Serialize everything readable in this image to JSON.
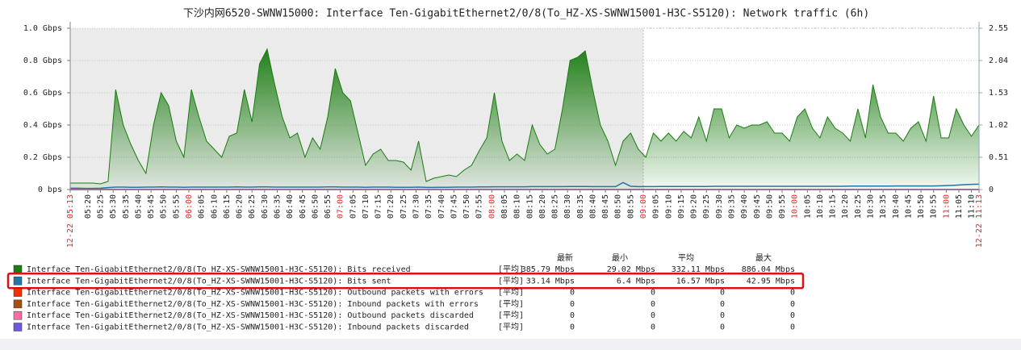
{
  "chart_data": {
    "type": "area",
    "title": "下沙内网6520-SWNW15000: Interface Ten-GigabitEthernet2/0/8(To_HZ-XS-SWNW15001-H3C-S5120): Network traffic (6h)",
    "xlim": [
      "12-22 05:13",
      "12-22 11:13"
    ],
    "xticks": [
      "12-22 05:13",
      "05:20",
      "05:25",
      "05:30",
      "05:35",
      "05:40",
      "05:45",
      "05:50",
      "05:55",
      "06:00",
      "06:05",
      "06:10",
      "06:15",
      "06:20",
      "06:25",
      "06:30",
      "06:35",
      "06:40",
      "06:45",
      "06:50",
      "06:55",
      "07:00",
      "07:05",
      "07:10",
      "07:15",
      "07:20",
      "07:25",
      "07:30",
      "07:35",
      "07:40",
      "07:45",
      "07:50",
      "07:55",
      "08:00",
      "08:05",
      "08:10",
      "08:15",
      "08:20",
      "08:25",
      "08:30",
      "08:35",
      "08:40",
      "08:45",
      "08:50",
      "08:55",
      "09:00",
      "09:05",
      "09:10",
      "09:15",
      "09:20",
      "09:25",
      "09:30",
      "09:35",
      "09:40",
      "09:45",
      "09:50",
      "09:55",
      "10:00",
      "10:05",
      "10:10",
      "10:15",
      "10:20",
      "10:25",
      "10:30",
      "10:35",
      "10:40",
      "10:45",
      "10:50",
      "10:55",
      "11:00",
      "11:05",
      "11:10",
      "12-22 11:13"
    ],
    "major_tick_color": "#e02a2a",
    "shaded_until": "09:00",
    "ylim": [
      0,
      1
    ],
    "yticks": [
      {
        "value": 0,
        "label": "0 bps"
      },
      {
        "value": 0.2,
        "label": "0.2 Gbps"
      },
      {
        "value": 0.4,
        "label": "0.4 Gbps"
      },
      {
        "value": 0.6,
        "label": "0.6 Gbps"
      },
      {
        "value": 0.8,
        "label": "0.8 Gbps"
      },
      {
        "value": 1.0,
        "label": "1.0 Gbps"
      }
    ],
    "y2lim": [
      0,
      2.55
    ],
    "y2ticks": [
      0,
      0.51,
      1.02,
      1.53,
      2.04,
      2.55
    ],
    "grid": true,
    "x": [
      "05:13",
      "05:16",
      "05:19",
      "05:22",
      "05:25",
      "05:28",
      "05:31",
      "05:34",
      "05:37",
      "05:40",
      "05:43",
      "05:46",
      "05:49",
      "05:52",
      "05:55",
      "05:58",
      "06:01",
      "06:04",
      "06:07",
      "06:10",
      "06:13",
      "06:16",
      "06:19",
      "06:22",
      "06:25",
      "06:28",
      "06:31",
      "06:34",
      "06:37",
      "06:40",
      "06:43",
      "06:46",
      "06:49",
      "06:52",
      "06:55",
      "06:58",
      "07:01",
      "07:04",
      "07:07",
      "07:10",
      "07:13",
      "07:16",
      "07:19",
      "07:22",
      "07:25",
      "07:28",
      "07:31",
      "07:34",
      "07:37",
      "07:40",
      "07:43",
      "07:46",
      "07:49",
      "07:52",
      "07:55",
      "07:58",
      "08:01",
      "08:04",
      "08:07",
      "08:10",
      "08:13",
      "08:16",
      "08:19",
      "08:22",
      "08:25",
      "08:28",
      "08:31",
      "08:34",
      "08:37",
      "08:40",
      "08:43",
      "08:46",
      "08:49",
      "08:52",
      "08:55",
      "08:58",
      "09:01",
      "09:04",
      "09:07",
      "09:10",
      "09:13",
      "09:16",
      "09:19",
      "09:22",
      "09:25",
      "09:28",
      "09:31",
      "09:34",
      "09:37",
      "09:40",
      "09:43",
      "09:46",
      "09:49",
      "09:52",
      "09:55",
      "09:58",
      "10:01",
      "10:04",
      "10:07",
      "10:10",
      "10:13",
      "10:16",
      "10:19",
      "10:22",
      "10:25",
      "10:28",
      "10:31",
      "10:34",
      "10:37",
      "10:40",
      "10:43",
      "10:46",
      "10:49",
      "10:52",
      "10:55",
      "10:58",
      "11:01",
      "11:04",
      "11:07",
      "11:10",
      "11:13"
    ],
    "legend_columns": [
      "最新",
      "最小",
      "平均",
      "最大"
    ],
    "highlight_series": 1,
    "series": [
      {
        "name": "Interface Ten-GigabitEthernet2/0/8(To_HZ-XS-SWNW15001-H3C-S5120): Bits received",
        "color": "#1a7c11",
        "style": "gradient",
        "func": "[平均]",
        "stats": [
          "385.79 Mbps",
          "29.02 Mbps",
          "332.11 Mbps",
          "886.04 Mbps"
        ],
        "values": [
          0.04,
          0.04,
          0.04,
          0.04,
          0.035,
          0.05,
          0.62,
          0.4,
          0.28,
          0.18,
          0.1,
          0.4,
          0.6,
          0.52,
          0.3,
          0.2,
          0.62,
          0.45,
          0.3,
          0.25,
          0.2,
          0.33,
          0.35,
          0.62,
          0.42,
          0.78,
          0.87,
          0.65,
          0.45,
          0.32,
          0.35,
          0.2,
          0.32,
          0.25,
          0.45,
          0.75,
          0.6,
          0.55,
          0.35,
          0.15,
          0.22,
          0.25,
          0.18,
          0.18,
          0.17,
          0.12,
          0.3,
          0.05,
          0.07,
          0.08,
          0.09,
          0.08,
          0.12,
          0.15,
          0.24,
          0.32,
          0.6,
          0.3,
          0.18,
          0.22,
          0.18,
          0.4,
          0.28,
          0.22,
          0.25,
          0.5,
          0.8,
          0.82,
          0.86,
          0.62,
          0.4,
          0.3,
          0.15,
          0.3,
          0.35,
          0.25,
          0.2,
          0.35,
          0.3,
          0.35,
          0.3,
          0.36,
          0.32,
          0.45,
          0.3,
          0.5,
          0.5,
          0.32,
          0.4,
          0.38,
          0.4,
          0.4,
          0.42,
          0.35,
          0.35,
          0.3,
          0.45,
          0.5,
          0.38,
          0.32,
          0.45,
          0.38,
          0.35,
          0.3,
          0.5,
          0.32,
          0.65,
          0.45,
          0.35,
          0.35,
          0.3,
          0.38,
          0.42,
          0.3,
          0.58,
          0.32,
          0.32,
          0.5,
          0.4,
          0.33,
          0.4
        ]
      },
      {
        "name": "Interface Ten-GigabitEthernet2/0/8(To_HZ-XS-SWNW15001-H3C-S5120): Bits sent",
        "color": "#2774a4",
        "style": "line",
        "func": "[平均]",
        "stats": [
          "33.14 Mbps",
          "6.4 Mbps",
          "16.57 Mbps",
          "42.95 Mbps"
        ],
        "values": [
          0.008,
          0.008,
          0.007,
          0.007,
          0.008,
          0.012,
          0.015,
          0.015,
          0.014,
          0.014,
          0.015,
          0.015,
          0.016,
          0.015,
          0.015,
          0.014,
          0.015,
          0.015,
          0.015,
          0.015,
          0.015,
          0.015,
          0.016,
          0.015,
          0.015,
          0.016,
          0.016,
          0.015,
          0.015,
          0.015,
          0.015,
          0.015,
          0.015,
          0.015,
          0.016,
          0.016,
          0.015,
          0.015,
          0.015,
          0.014,
          0.015,
          0.015,
          0.015,
          0.014,
          0.014,
          0.014,
          0.015,
          0.013,
          0.013,
          0.014,
          0.014,
          0.015,
          0.015,
          0.015,
          0.016,
          0.016,
          0.017,
          0.017,
          0.017,
          0.017,
          0.017,
          0.018,
          0.018,
          0.018,
          0.018,
          0.018,
          0.019,
          0.019,
          0.019,
          0.018,
          0.018,
          0.018,
          0.018,
          0.043,
          0.02,
          0.018,
          0.018,
          0.018,
          0.019,
          0.019,
          0.019,
          0.019,
          0.019,
          0.019,
          0.019,
          0.02,
          0.02,
          0.02,
          0.02,
          0.02,
          0.02,
          0.02,
          0.02,
          0.02,
          0.02,
          0.02,
          0.02,
          0.02,
          0.02,
          0.02,
          0.02,
          0.02,
          0.02,
          0.021,
          0.021,
          0.021,
          0.021,
          0.021,
          0.021,
          0.022,
          0.022,
          0.022,
          0.022,
          0.022,
          0.022,
          0.023,
          0.025,
          0.027,
          0.03,
          0.032,
          0.033
        ]
      },
      {
        "name": "Interface Ten-GigabitEthernet2/0/8(To_HZ-XS-SWNW15001-H3C-S5120): Outbound packets with errors",
        "color": "#f63100",
        "style": "line",
        "axis": "y2",
        "func": "[平均]",
        "stats": [
          "0",
          "0",
          "0",
          "0"
        ],
        "values": [
          0,
          0,
          0,
          0,
          0,
          0,
          0,
          0,
          0,
          0,
          0,
          0,
          0,
          0,
          0,
          0,
          0,
          0,
          0,
          0,
          0,
          0,
          0,
          0,
          0,
          0,
          0,
          0,
          0,
          0,
          0,
          0,
          0,
          0,
          0,
          0,
          0,
          0,
          0,
          0,
          0,
          0,
          0,
          0,
          0,
          0,
          0,
          0,
          0,
          0,
          0,
          0,
          0,
          0,
          0,
          0,
          0,
          0,
          0,
          0,
          0,
          0,
          0,
          0,
          0,
          0,
          0,
          0,
          0,
          0,
          0,
          0,
          0,
          0,
          0,
          0,
          0,
          0,
          0,
          0,
          0,
          0,
          0,
          0,
          0,
          0,
          0,
          0,
          0,
          0,
          0,
          0,
          0,
          0,
          0,
          0,
          0,
          0,
          0,
          0,
          0,
          0,
          0,
          0,
          0,
          0,
          0,
          0,
          0,
          0,
          0,
          0,
          0,
          0,
          0,
          0,
          0,
          0,
          0,
          0,
          0
        ]
      },
      {
        "name": "Interface Ten-GigabitEthernet2/0/8(To_HZ-XS-SWNW15001-H3C-S5120): Inbound packets with errors",
        "color": "#a54f10",
        "style": "line",
        "axis": "y2",
        "func": "[平均]",
        "stats": [
          "0",
          "0",
          "0",
          "0"
        ],
        "values": [
          0,
          0,
          0,
          0,
          0,
          0,
          0,
          0,
          0,
          0,
          0,
          0,
          0,
          0,
          0,
          0,
          0,
          0,
          0,
          0,
          0,
          0,
          0,
          0,
          0,
          0,
          0,
          0,
          0,
          0,
          0,
          0,
          0,
          0,
          0,
          0,
          0,
          0,
          0,
          0,
          0,
          0,
          0,
          0,
          0,
          0,
          0,
          0,
          0,
          0,
          0,
          0,
          0,
          0,
          0,
          0,
          0,
          0,
          0,
          0,
          0,
          0,
          0,
          0,
          0,
          0,
          0,
          0,
          0,
          0,
          0,
          0,
          0,
          0,
          0,
          0,
          0,
          0,
          0,
          0,
          0,
          0,
          0,
          0,
          0,
          0,
          0,
          0,
          0,
          0,
          0,
          0,
          0,
          0,
          0,
          0,
          0,
          0,
          0,
          0,
          0,
          0,
          0,
          0,
          0,
          0,
          0,
          0,
          0,
          0,
          0,
          0,
          0,
          0,
          0,
          0,
          0,
          0,
          0,
          0,
          0
        ]
      },
      {
        "name": "Interface Ten-GigabitEthernet2/0/8(To_HZ-XS-SWNW15001-H3C-S5120): Outbound packets discarded",
        "color": "#fc6ea3",
        "style": "line",
        "axis": "y2",
        "func": "[平均]",
        "stats": [
          "0",
          "0",
          "0",
          "0"
        ],
        "values": [
          0,
          0,
          0,
          0,
          0,
          0,
          0,
          0,
          0,
          0,
          0,
          0,
          0,
          0,
          0,
          0,
          0,
          0,
          0,
          0,
          0,
          0,
          0,
          0,
          0,
          0,
          0,
          0,
          0,
          0,
          0,
          0,
          0,
          0,
          0,
          0,
          0,
          0,
          0,
          0,
          0,
          0,
          0,
          0,
          0,
          0,
          0,
          0,
          0,
          0,
          0,
          0,
          0,
          0,
          0,
          0,
          0,
          0,
          0,
          0,
          0,
          0,
          0,
          0,
          0,
          0,
          0,
          0,
          0,
          0,
          0,
          0,
          0,
          0,
          0,
          0,
          0,
          0,
          0,
          0,
          0,
          0,
          0,
          0,
          0,
          0,
          0,
          0,
          0,
          0,
          0,
          0,
          0,
          0,
          0,
          0,
          0,
          0,
          0,
          0,
          0,
          0,
          0,
          0,
          0,
          0,
          0,
          0,
          0,
          0,
          0,
          0,
          0,
          0,
          0,
          0,
          0,
          0,
          0,
          0,
          0
        ]
      },
      {
        "name": "Interface Ten-GigabitEthernet2/0/8(To_HZ-XS-SWNW15001-H3C-S5120): Inbound packets discarded",
        "color": "#6c59dc",
        "style": "line",
        "axis": "y2",
        "func": "[平均]",
        "stats": [
          "0",
          "0",
          "0",
          "0"
        ],
        "values": [
          0,
          0,
          0,
          0,
          0,
          0,
          0,
          0,
          0,
          0,
          0,
          0,
          0,
          0,
          0,
          0,
          0,
          0,
          0,
          0,
          0,
          0,
          0,
          0,
          0,
          0,
          0,
          0,
          0,
          0,
          0,
          0,
          0,
          0,
          0,
          0,
          0,
          0,
          0,
          0,
          0,
          0,
          0,
          0,
          0,
          0,
          0,
          0,
          0,
          0,
          0,
          0,
          0,
          0,
          0,
          0,
          0,
          0,
          0,
          0,
          0,
          0,
          0,
          0,
          0,
          0,
          0,
          0,
          0,
          0,
          0,
          0,
          0,
          0,
          0,
          0,
          0,
          0,
          0,
          0,
          0,
          0,
          0,
          0,
          0,
          0,
          0,
          0,
          0,
          0,
          0,
          0,
          0,
          0,
          0,
          0,
          0,
          0,
          0,
          0,
          0,
          0,
          0,
          0,
          0,
          0,
          0,
          0,
          0,
          0,
          0,
          0,
          0,
          0,
          0,
          0,
          0,
          0,
          0,
          0,
          0
        ]
      }
    ]
  }
}
